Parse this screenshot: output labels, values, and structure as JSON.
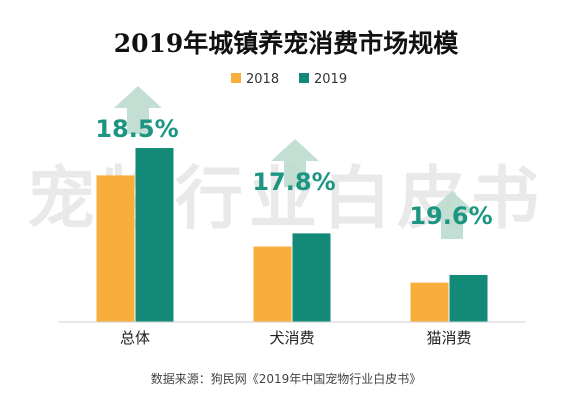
{
  "chart_data": {
    "type": "bar",
    "title": "2019年城镇养宠消费市场规模",
    "categories": [
      "总体",
      "犬消费",
      "猫消费"
    ],
    "series": [
      {
        "name": "2018",
        "values": [
          1340,
          690,
          360
        ],
        "color": "#f7ae3b"
      },
      {
        "name": "2019",
        "values": [
          1590,
          810,
          430
        ],
        "color": "#138a78"
      }
    ],
    "growth_labels": [
      "18.5%",
      "17.8%",
      "19.6%"
    ],
    "growth_color": "#1c9682",
    "arrow_color": "#bcdccf",
    "legend": "top-center",
    "grid": false,
    "ylim": [
      0,
      1700
    ]
  },
  "watermark": "宠物行业白皮书",
  "source": "数据来源：狗民网《2019年中国宠物行业白皮书》"
}
